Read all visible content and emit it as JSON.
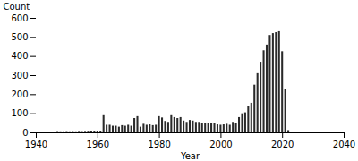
{
  "chart_data": {
    "type": "bar",
    "xlabel": "Year",
    "ylabel": "Count",
    "color": "#2a2a2a",
    "grid": false,
    "x": [
      1947,
      1948,
      1949,
      1950,
      1951,
      1952,
      1953,
      1954,
      1955,
      1956,
      1957,
      1958,
      1959,
      1960,
      1961,
      1962,
      1963,
      1964,
      1965,
      1966,
      1967,
      1968,
      1969,
      1970,
      1971,
      1972,
      1973,
      1974,
      1975,
      1976,
      1977,
      1978,
      1979,
      1980,
      1981,
      1982,
      1983,
      1984,
      1985,
      1986,
      1987,
      1988,
      1989,
      1990,
      1991,
      1992,
      1993,
      1994,
      1995,
      1996,
      1997,
      1998,
      1999,
      2000,
      2001,
      2002,
      2003,
      2004,
      2005,
      2006,
      2007,
      2008,
      2009,
      2010,
      2011,
      2012,
      2013,
      2014,
      2015,
      2016,
      2017,
      2018,
      2019,
      2020,
      2021,
      2022
    ],
    "values": [
      2,
      1,
      1,
      2,
      1,
      2,
      1,
      3,
      2,
      3,
      4,
      5,
      6,
      7,
      8,
      90,
      40,
      40,
      35,
      35,
      30,
      38,
      35,
      40,
      35,
      75,
      85,
      30,
      45,
      40,
      42,
      38,
      40,
      85,
      78,
      60,
      55,
      90,
      80,
      75,
      80,
      62,
      55,
      65,
      62,
      55,
      55,
      48,
      50,
      50,
      48,
      48,
      42,
      40,
      42,
      45,
      40,
      55,
      48,
      80,
      100,
      105,
      140,
      155,
      250,
      310,
      370,
      430,
      460,
      510,
      520,
      525,
      530,
      425,
      225,
      12
    ],
    "xlim": [
      1940,
      2040
    ],
    "xticks": [
      1940,
      1960,
      1980,
      2000,
      2020,
      2040
    ],
    "ylim": [
      0,
      600
    ],
    "yticks": [
      0,
      100,
      200,
      300,
      400,
      500,
      600
    ]
  }
}
